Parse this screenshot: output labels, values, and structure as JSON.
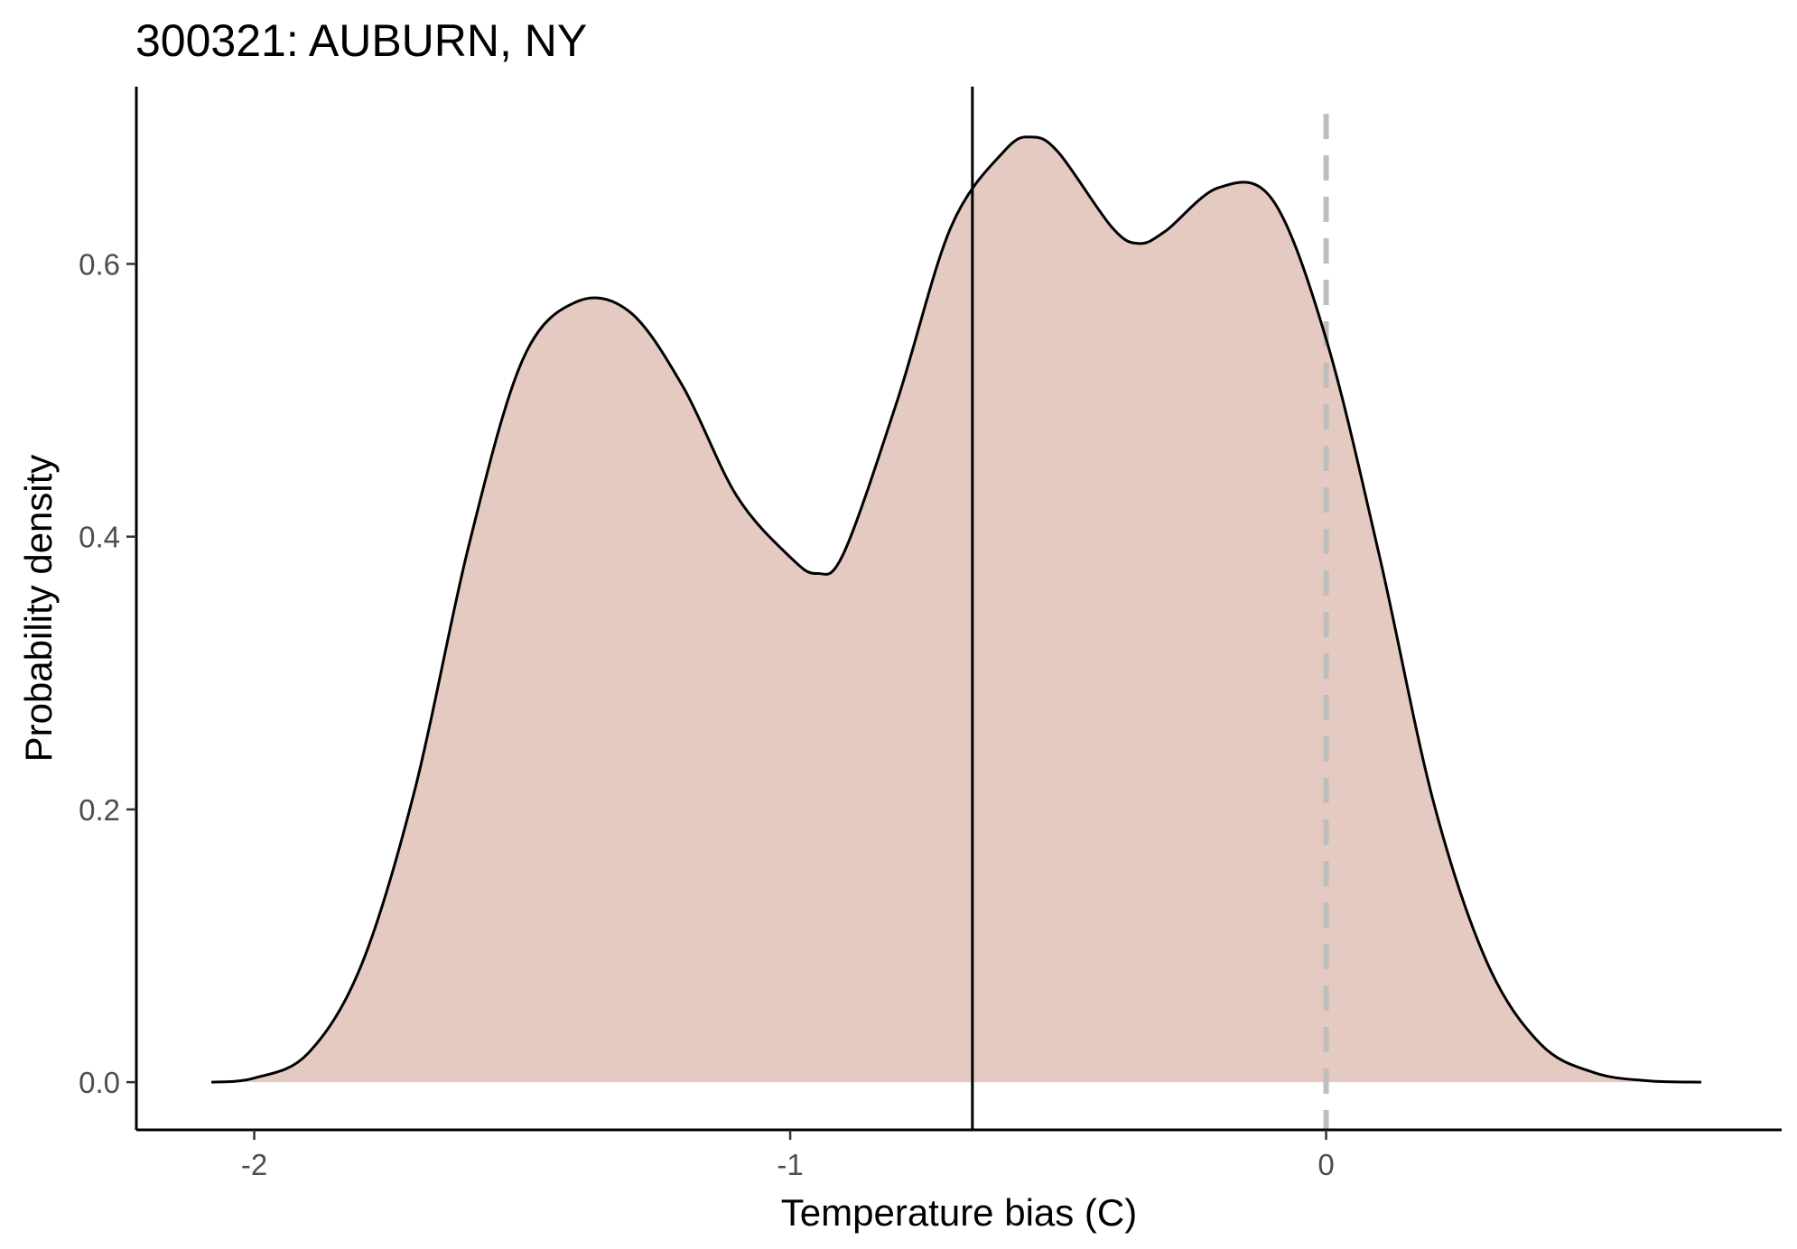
{
  "chart_data": {
    "type": "area",
    "title": "300321: AUBURN, NY",
    "xlabel": "Temperature bias (C)",
    "ylabel": "Probability density",
    "xlim": [
      -2.22,
      0.85
    ],
    "ylim": [
      -0.035,
      0.73
    ],
    "x_ticks": [
      {
        "value": -2,
        "label": "-2"
      },
      {
        "value": -1,
        "label": "-1"
      },
      {
        "value": 0,
        "label": "0"
      }
    ],
    "y_ticks": [
      {
        "value": 0.0,
        "label": "0.0"
      },
      {
        "value": 0.2,
        "label": "0.2"
      },
      {
        "value": 0.4,
        "label": "0.4"
      },
      {
        "value": 0.6,
        "label": "0.6"
      }
    ],
    "grid": false,
    "legend": "none",
    "fill_color": "#e5cac2",
    "line_color": "#000000",
    "reference_lines": [
      {
        "x": -0.66,
        "style": "solid",
        "color": "#000000"
      },
      {
        "x": 0.0,
        "style": "dashed",
        "color": "#bebebe"
      }
    ],
    "series": [
      {
        "x": [
          -2.08,
          -2.0,
          -1.9,
          -1.8,
          -1.7,
          -1.6,
          -1.5,
          -1.4,
          -1.3,
          -1.2,
          -1.1,
          -1.0,
          -0.95,
          -0.9,
          -0.8,
          -0.7,
          -0.6,
          -0.55,
          -0.5,
          -0.4,
          -0.35,
          -0.3,
          -0.2,
          -0.1,
          0.0,
          0.1,
          0.2,
          0.3,
          0.4,
          0.5,
          0.6,
          0.7
        ],
        "y": [
          0.0,
          0.003,
          0.021,
          0.086,
          0.215,
          0.393,
          0.529,
          0.572,
          0.565,
          0.51,
          0.43,
          0.385,
          0.373,
          0.388,
          0.5,
          0.627,
          0.683,
          0.693,
          0.682,
          0.627,
          0.615,
          0.624,
          0.656,
          0.647,
          0.545,
          0.385,
          0.206,
          0.088,
          0.028,
          0.007,
          0.001,
          0.0
        ]
      }
    ]
  }
}
